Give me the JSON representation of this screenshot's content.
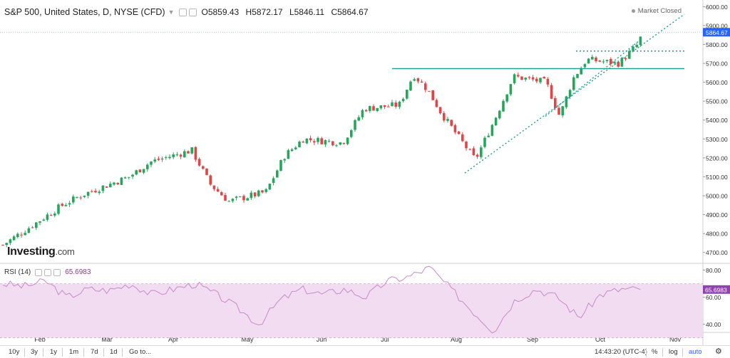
{
  "header": {
    "symbol": "S&P 500, United States, D, NYSE (CFD)",
    "open": "O5859.43",
    "high": "H5872.17",
    "low": "L5846.11",
    "close": "C5864.67"
  },
  "market_status": "Market Closed",
  "brand": {
    "name": "Investing",
    "suffix": ".com"
  },
  "rsi_header": {
    "label": "RSI (14)",
    "value": "65.6983"
  },
  "price_axis": {
    "ticks": [
      "6000.00",
      "5900.00",
      "5800.00",
      "5700.00",
      "5600.00",
      "5500.00",
      "5400.00",
      "5300.00",
      "5200.00",
      "5100.00",
      "5000.00",
      "4900.00",
      "4800.00",
      "4700.00"
    ],
    "last_price_label": "5864.67",
    "last_price_color": "#2962ff"
  },
  "rsi_axis": {
    "ticks": [
      "80.00",
      "60.00",
      "40.00"
    ],
    "last_value_label": "65.6983",
    "last_value_color": "#8e44ad"
  },
  "time_axis": {
    "labels": [
      "Feb",
      "Mar",
      "Apr",
      "May",
      "Jun",
      "Jul",
      "Aug",
      "Sep",
      "Oct",
      "Nov"
    ]
  },
  "bottom_bar": {
    "ranges": [
      "10y",
      "3y",
      "1y",
      "1m",
      "7d",
      "1d"
    ],
    "goto": "Go to...",
    "time": "14:43:20 (UTC-4)",
    "percent": "%",
    "log": "log",
    "auto": "auto"
  },
  "colors": {
    "up": "#26a65b",
    "down": "#e04646",
    "trendline": "#1a9e8f",
    "rsi_line": "#c78ac7",
    "rsi_band": "#f2dcf2"
  },
  "chart_data": [
    {
      "type": "candlestick",
      "title": "S&P 500, United States, D, NYSE (CFD)",
      "x_range": [
        "Jan",
        "Nov"
      ],
      "ylim": [
        4650,
        6020
      ],
      "grid": false,
      "series": [
        {
          "name": "S&P 500",
          "anchor_closes": [
            {
              "x": "Jan",
              "y": 4740
            },
            {
              "x": "Jan",
              "y": 4850
            },
            {
              "x": "Feb",
              "y": 4950
            },
            {
              "x": "Feb",
              "y": 5010
            },
            {
              "x": "Mar",
              "y": 5100
            },
            {
              "x": "Mar",
              "y": 5180
            },
            {
              "x": "Apr",
              "y": 5240
            },
            {
              "x": "Apr",
              "y": 5060
            },
            {
              "x": "Apr",
              "y": 4970
            },
            {
              "x": "May",
              "y": 5020
            },
            {
              "x": "May",
              "y": 5210
            },
            {
              "x": "May",
              "y": 5300
            },
            {
              "x": "Jun",
              "y": 5280
            },
            {
              "x": "Jun",
              "y": 5460
            },
            {
              "x": "Jul",
              "y": 5480
            },
            {
              "x": "Jul",
              "y": 5640
            },
            {
              "x": "Jul",
              "y": 5560
            },
            {
              "x": "Jul",
              "y": 5430
            },
            {
              "x": "Aug",
              "y": 5190
            },
            {
              "x": "Aug",
              "y": 5400
            },
            {
              "x": "Aug",
              "y": 5630
            },
            {
              "x": "Sep",
              "y": 5600
            },
            {
              "x": "Sep",
              "y": 5420
            },
            {
              "x": "Sep",
              "y": 5620
            },
            {
              "x": "Sep",
              "y": 5720
            },
            {
              "x": "Oct",
              "y": 5700
            },
            {
              "x": "Oct",
              "y": 5800
            },
            {
              "x": "Oct",
              "y": 5864.67
            }
          ]
        }
      ],
      "annotations": [
        {
          "type": "horizontal",
          "y": 5672,
          "from": "Jul",
          "to": "Nov",
          "style": "solid"
        },
        {
          "type": "horizontal",
          "y": 5765,
          "from": "Sep",
          "to": "Nov",
          "style": "dotted"
        },
        {
          "type": "trendline",
          "from": {
            "x": "Aug",
            "y": 5120
          },
          "to": {
            "x": "Oct",
            "y": 5960
          },
          "style": "dotted"
        },
        {
          "type": "trendline",
          "from": {
            "x": "Sep",
            "y": 5420
          },
          "to": {
            "x": "Oct",
            "y": 5830
          },
          "style": "dotted"
        }
      ]
    },
    {
      "type": "line",
      "title": "RSI (14)",
      "ylim": [
        34,
        84
      ],
      "band": [
        30,
        70
      ],
      "series": [
        {
          "name": "RSI (14)",
          "anchor_values": [
            70,
            68,
            72,
            60,
            66,
            65,
            70,
            62,
            66,
            70,
            62,
            52,
            40,
            58,
            66,
            62,
            66,
            60,
            72,
            75,
            82,
            66,
            50,
            35,
            58,
            66,
            60,
            45,
            62,
            66,
            65.6983
          ]
        }
      ]
    }
  ]
}
